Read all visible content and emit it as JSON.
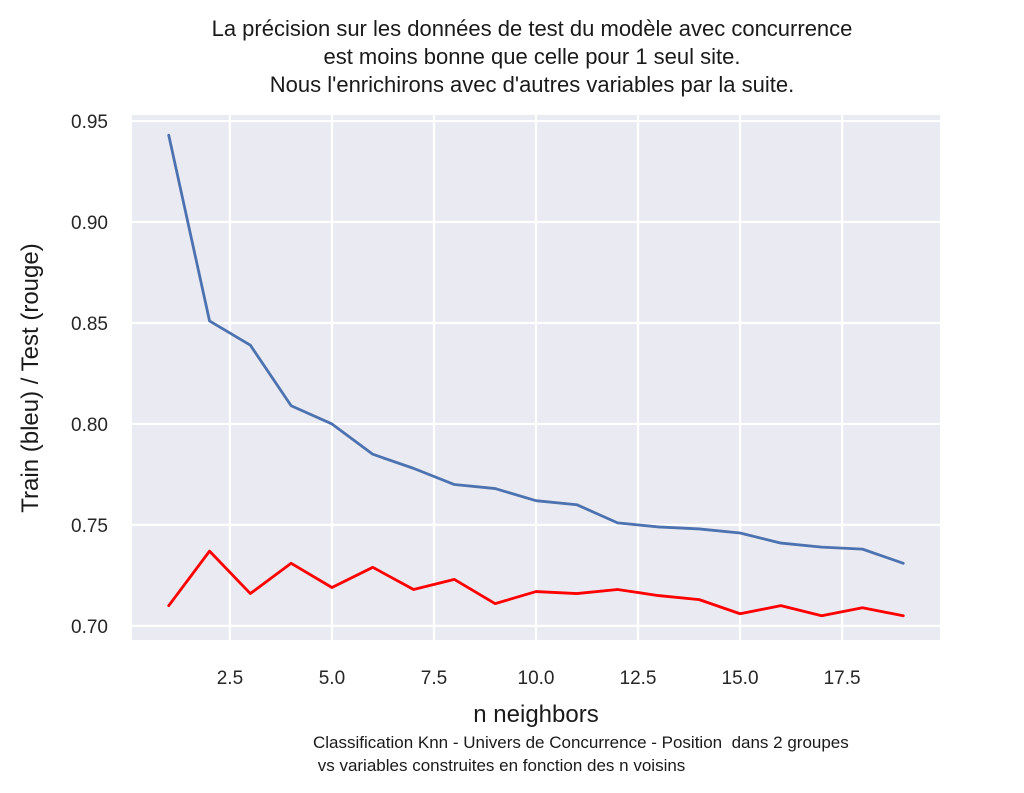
{
  "chart_data": {
    "type": "line",
    "title_lines": [
      "La précision sur les données de test du modèle avec concurrence",
      "est moins bonne que celle pour 1 seul site.",
      "Nous l'enrichirons avec d'autres variables par la suite."
    ],
    "xlabel": "n neighbors",
    "ylabel": "Train (bleu) / Test (rouge)",
    "caption_lines": [
      "Classification Knn - Univers de Concurrence - Position  dans 2 groupes",
      " vs variables construites en fonction des n voisins"
    ],
    "x": [
      1,
      2,
      3,
      4,
      5,
      6,
      7,
      8,
      9,
      10,
      11,
      12,
      13,
      14,
      15,
      16,
      17,
      18,
      19
    ],
    "series": [
      {
        "color": "#4c72b0",
        "values": [
          0.943,
          0.851,
          0.839,
          0.809,
          0.8,
          0.785,
          0.778,
          0.77,
          0.768,
          0.762,
          0.76,
          0.751,
          0.749,
          0.748,
          0.746,
          0.741,
          0.739,
          0.738,
          0.731
        ]
      },
      {
        "color": "#ff0000",
        "values": [
          0.71,
          0.737,
          0.716,
          0.731,
          0.719,
          0.729,
          0.718,
          0.723,
          0.711,
          0.717,
          0.716,
          0.718,
          0.715,
          0.713,
          0.706,
          0.71,
          0.705,
          0.709,
          0.705
        ]
      }
    ],
    "xlim": [
      0.1,
      19.9
    ],
    "ylim": [
      0.693,
      0.953
    ],
    "xticks": [
      2.5,
      5.0,
      7.5,
      10.0,
      12.5,
      15.0,
      17.5
    ],
    "xtick_labels": [
      "2.5",
      "5.0",
      "7.5",
      "10.0",
      "12.5",
      "15.0",
      "17.5"
    ],
    "yticks": [
      0.7,
      0.75,
      0.8,
      0.85,
      0.9,
      0.95
    ],
    "ytick_labels": [
      "0.70",
      "0.75",
      "0.80",
      "0.85",
      "0.90",
      "0.95"
    ],
    "grid": true,
    "background_color": "#eaeaf2",
    "grid_color": "#ffffff"
  }
}
